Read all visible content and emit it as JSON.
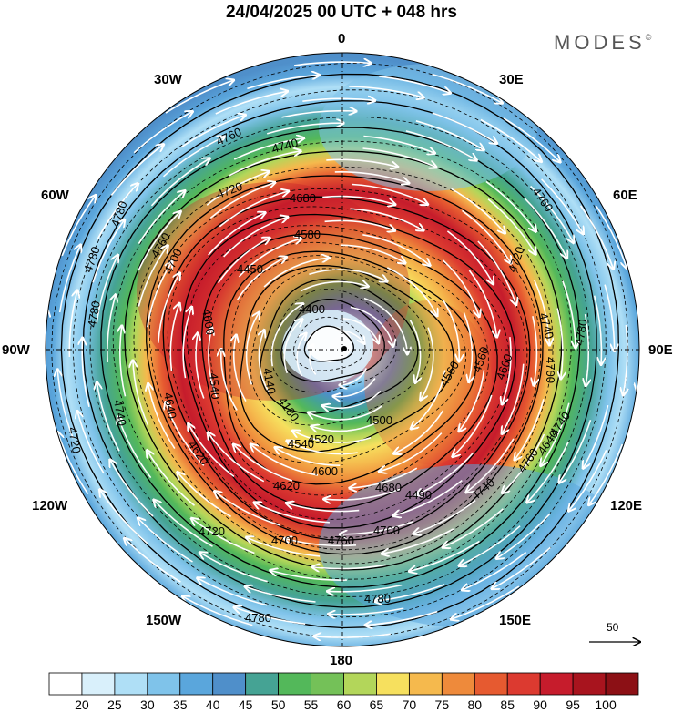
{
  "header": {
    "title": "24/04/2025  00 UTC  + 048 hrs",
    "brand": "MODES",
    "brand_mark": "©"
  },
  "map": {
    "projection": "polar stereographic (south pole)",
    "longitude_labels": {
      "top": "0",
      "top_left": "30W",
      "top_right": "30E",
      "upper_left": "60W",
      "upper_right": "60E",
      "left": "90W",
      "right": "90E",
      "lower_left": "120W",
      "lower_right": "120E",
      "bottom_left": "150W",
      "bottom_right": "150E",
      "bottom": "180"
    },
    "contour_labels": [
      "4760",
      "4740",
      "4780",
      "4720",
      "4680",
      "4580",
      "4780",
      "4760",
      "4700",
      "4600",
      "4450",
      "4400",
      "4720",
      "4760",
      "4740",
      "4780",
      "4700",
      "4540",
      "4660",
      "4560",
      "4640",
      "4740",
      "4620",
      "4500",
      "4540",
      "4520",
      "4640",
      "4760",
      "4600",
      "4620",
      "4680",
      "4740",
      "4720",
      "4700",
      "4700",
      "4760",
      "4780",
      "4780",
      "4720",
      "4740",
      "4780",
      "4560",
      "4490",
      "4140",
      "4180"
    ],
    "wind_reference_vector": "50"
  },
  "colorbar": {
    "colors": [
      "#ffffff",
      "#d9f0fb",
      "#afdff6",
      "#7fc3ea",
      "#5aa6dc",
      "#4f8fca",
      "#45a394",
      "#53b85a",
      "#74c158",
      "#b3d65a",
      "#f6e05e",
      "#f5b94d",
      "#ee8a3b",
      "#e65a30",
      "#dc3a30",
      "#c61c2c",
      "#a8141e",
      "#8c1015"
    ],
    "ticks": [
      "20",
      "25",
      "30",
      "35",
      "40",
      "45",
      "50",
      "55",
      "60",
      "65",
      "70",
      "75",
      "80",
      "85",
      "90",
      "95",
      "100"
    ]
  }
}
